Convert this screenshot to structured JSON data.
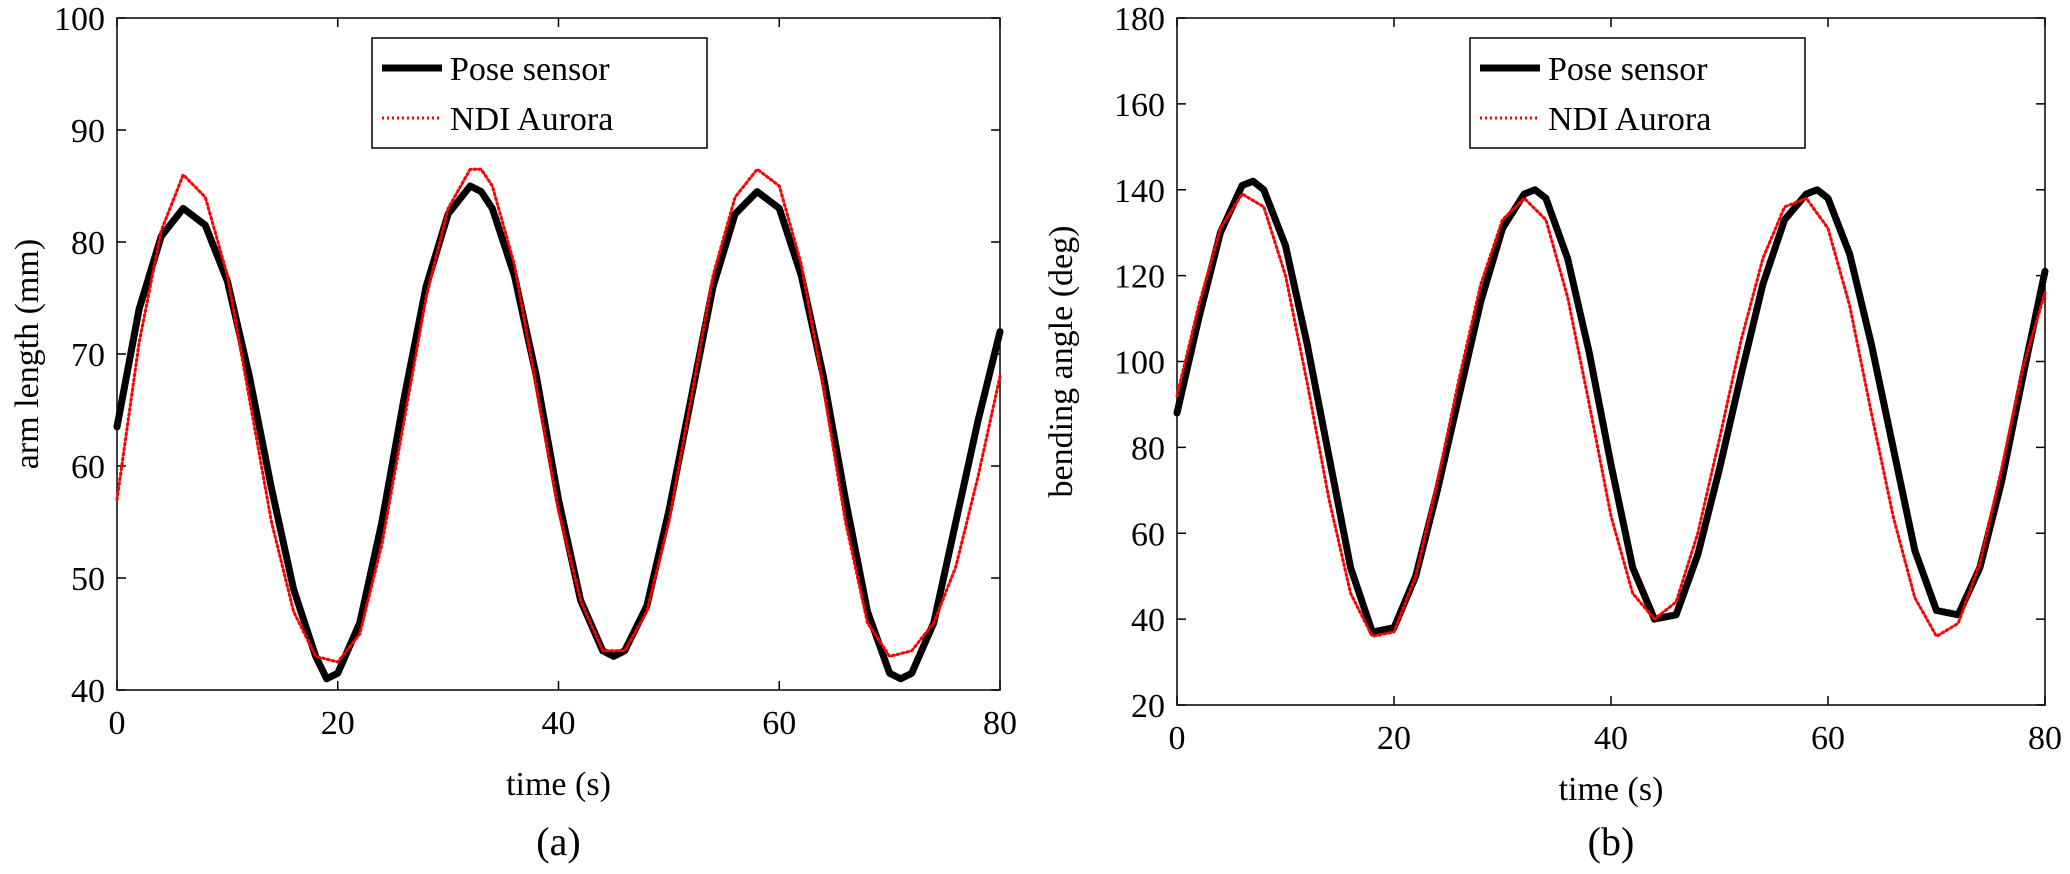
{
  "chart_data": [
    {
      "type": "line",
      "panel_label": "(a)",
      "xlabel": "time (s)",
      "ylabel": "arm length (mm)",
      "xlim": [
        0,
        80
      ],
      "ylim": [
        40,
        100
      ],
      "xticks": [
        0,
        20,
        40,
        60,
        80
      ],
      "yticks": [
        40,
        50,
        60,
        70,
        80,
        90,
        100
      ],
      "grid": false,
      "legend": "top-center",
      "series": [
        {
          "name": "Pose sensor",
          "color": "#000000",
          "style": "solid-thick",
          "x": [
            0,
            2,
            4,
            6,
            8,
            10,
            12,
            14,
            16,
            18,
            19,
            20,
            22,
            24,
            26,
            28,
            30,
            32,
            33,
            34,
            36,
            38,
            40,
            42,
            44,
            45,
            46,
            48,
            50,
            52,
            54,
            56,
            58,
            60,
            62,
            64,
            66,
            68,
            70,
            71,
            72,
            74,
            76,
            78,
            80
          ],
          "y": [
            63.5,
            74,
            80.5,
            83,
            81.5,
            76.5,
            68,
            58,
            49,
            43,
            41,
            41.5,
            46,
            55,
            66,
            76,
            82.5,
            85,
            84.5,
            83,
            77,
            68,
            57,
            48,
            43.5,
            43,
            43.5,
            47.5,
            56,
            66,
            76,
            82.5,
            84.5,
            83,
            77,
            68,
            57,
            47,
            41.5,
            41,
            41.5,
            46,
            55,
            64,
            72
          ]
        },
        {
          "name": "NDI Aurora",
          "color": "#ff0000",
          "style": "dotted",
          "x": [
            0,
            2,
            4,
            6,
            8,
            10,
            12,
            14,
            16,
            18,
            20,
            22,
            24,
            26,
            28,
            30,
            32,
            33,
            34,
            36,
            38,
            40,
            42,
            44,
            46,
            48,
            50,
            52,
            54,
            56,
            58,
            60,
            62,
            64,
            66,
            68,
            70,
            72,
            74,
            76,
            78,
            80
          ],
          "y": [
            57,
            71,
            81,
            86,
            84,
            77,
            66,
            55,
            47,
            43,
            42.5,
            45,
            53,
            64,
            75,
            83,
            86.5,
            86.5,
            85,
            78,
            67,
            56,
            48,
            43.5,
            43.5,
            47,
            55,
            66,
            77,
            84,
            86.5,
            85,
            78,
            67,
            55,
            46,
            43,
            43.5,
            46,
            51,
            59,
            68
          ]
        }
      ]
    },
    {
      "type": "line",
      "panel_label": "(b)",
      "xlabel": "time (s)",
      "ylabel": "bending angle (deg)",
      "xlim": [
        0,
        80
      ],
      "ylim": [
        20,
        180
      ],
      "xticks": [
        0,
        20,
        40,
        60,
        80
      ],
      "yticks": [
        20,
        40,
        60,
        80,
        100,
        120,
        140,
        160,
        180
      ],
      "grid": false,
      "legend": "top-center",
      "series": [
        {
          "name": "Pose sensor",
          "color": "#000000",
          "style": "solid-thick",
          "x": [
            0,
            2,
            4,
            6,
            7,
            8,
            10,
            12,
            14,
            16,
            18,
            20,
            22,
            24,
            26,
            28,
            30,
            32,
            33,
            34,
            36,
            38,
            40,
            42,
            44,
            46,
            48,
            50,
            52,
            54,
            56,
            58,
            59,
            60,
            62,
            64,
            66,
            68,
            70,
            72,
            74,
            76,
            78,
            80
          ],
          "y": [
            88,
            110,
            130,
            141,
            142,
            140,
            127,
            104,
            78,
            52,
            37,
            38,
            50,
            70,
            92,
            114,
            131,
            139,
            140,
            138,
            124,
            102,
            76,
            52,
            40,
            41,
            55,
            75,
            97,
            118,
            133,
            139,
            140,
            138,
            125,
            104,
            80,
            56,
            42,
            41,
            52,
            72,
            97,
            121
          ]
        },
        {
          "name": "NDI Aurora",
          "color": "#ff0000",
          "style": "dotted",
          "x": [
            0,
            2,
            4,
            6,
            8,
            10,
            12,
            14,
            16,
            18,
            20,
            22,
            24,
            26,
            28,
            30,
            32,
            34,
            36,
            38,
            40,
            42,
            44,
            46,
            48,
            50,
            52,
            54,
            56,
            58,
            60,
            62,
            64,
            66,
            68,
            70,
            72,
            74,
            76,
            78,
            80
          ],
          "y": [
            92,
            113,
            131,
            139,
            136,
            120,
            95,
            68,
            46,
            36,
            37,
            50,
            72,
            96,
            118,
            133,
            138,
            133,
            115,
            90,
            64,
            46,
            40,
            44,
            60,
            82,
            105,
            124,
            136,
            138,
            131,
            113,
            88,
            64,
            45,
            36,
            39,
            53,
            75,
            99,
            116
          ]
        }
      ]
    }
  ]
}
